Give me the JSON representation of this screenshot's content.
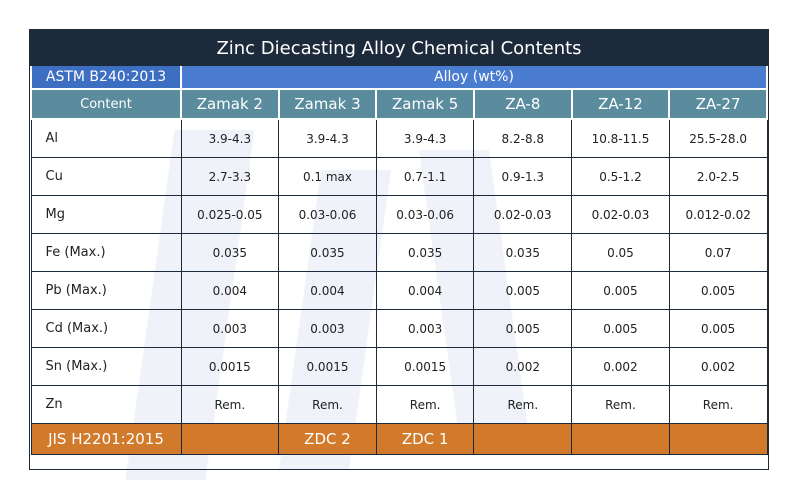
{
  "title": "Zinc Diecasting Alloy Chemical Contents",
  "standard": "ASTM B240:2013",
  "group_label": "Alloy (wt%)",
  "header": {
    "first": "Content",
    "alloys": [
      "Zamak 2",
      "Zamak 3",
      "Zamak 5",
      "ZA-8",
      "ZA-12",
      "ZA-27"
    ]
  },
  "rows": [
    [
      "Al",
      "3.9-4.3",
      "3.9-4.3",
      "3.9-4.3",
      "8.2-8.8",
      "10.8-11.5",
      "25.5-28.0"
    ],
    [
      "Cu",
      "2.7-3.3",
      "0.1 max",
      "0.7-1.1",
      "0.9-1.3",
      "0.5-1.2",
      "2.0-2.5"
    ],
    [
      "Mg",
      "0.025-0.05",
      "0.03-0.06",
      "0.03-0.06",
      "0.02-0.03",
      "0.02-0.03",
      "0.012-0.02"
    ],
    [
      "Fe (Max.)",
      "0.035",
      "0.035",
      "0.035",
      "0.035",
      "0.05",
      "0.07"
    ],
    [
      "Pb (Max.)",
      "0.004",
      "0.004",
      "0.004",
      "0.005",
      "0.005",
      "0.005"
    ],
    [
      "Cd (Max.)",
      "0.003",
      "0.003",
      "0.003",
      "0.005",
      "0.005",
      "0.005"
    ],
    [
      "Sn (Max.)",
      "0.0015",
      "0.0015",
      "0.0015",
      "0.002",
      "0.002",
      "0.002"
    ],
    [
      "Zn",
      "Rem.",
      "Rem.",
      "Rem.",
      "Rem.",
      "Rem.",
      "Rem."
    ]
  ],
  "footer": {
    "standard": "JIS H2201:2015",
    "designations": [
      null,
      "ZDC 2",
      "ZDC 1",
      null,
      null,
      null
    ]
  }
}
